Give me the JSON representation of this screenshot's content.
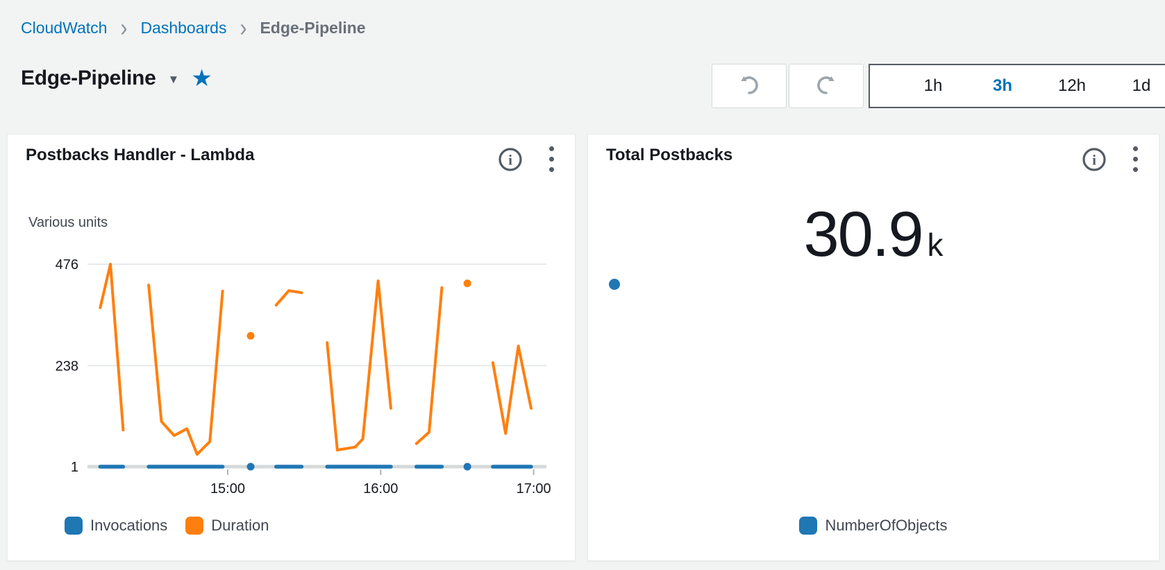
{
  "breadcrumb": {
    "items": [
      {
        "label": "CloudWatch"
      },
      {
        "label": "Dashboards"
      },
      {
        "label": "Edge-Pipeline"
      }
    ]
  },
  "header": {
    "title": "Edge-Pipeline"
  },
  "icons": {
    "breadcrumb_separator": "›",
    "title_caret": "▼",
    "favorite_star": "★"
  },
  "toolbar": {
    "ranges": [
      "1h",
      "3h",
      "12h",
      "1d"
    ],
    "selected_range": "3h"
  },
  "colors": {
    "link_blue": "#0073bb",
    "series_blue": "#1f77b4",
    "series_orange": "#ff7f0e",
    "background": "#f2f3f3",
    "text_dark": "#16191f"
  },
  "chart_data": [
    {
      "type": "line",
      "title": "Postbacks Handler - Lambda",
      "units_label": "Various units",
      "ylim": [
        1,
        476
      ],
      "yticks": [
        476,
        238,
        1
      ],
      "x_start": "14:05",
      "x_end": "17:05",
      "xticks": [
        "15:00",
        "16:00",
        "17:00"
      ],
      "grid": true,
      "legend_position": "bottom",
      "series": [
        {
          "name": "Invocations",
          "color": "#1f77b4",
          "segments": [
            [
              [
                "14:10",
                1
              ],
              [
                "14:19",
                1
              ]
            ],
            [
              [
                "14:29",
                1
              ],
              [
                "14:58",
                1
              ]
            ],
            [
              [
                "15:19",
                1
              ],
              [
                "15:29",
                1
              ]
            ],
            [
              [
                "15:39",
                1
              ],
              [
                "16:04",
                1
              ]
            ],
            [
              [
                "16:14",
                1
              ],
              [
                "16:24",
                1
              ]
            ],
            [
              [
                "16:44",
                1
              ],
              [
                "16:59",
                1
              ]
            ]
          ],
          "dots": [
            [
              "15:09",
              1
            ],
            [
              "16:34",
              1
            ]
          ]
        },
        {
          "name": "Duration",
          "color": "#ff7f0e",
          "segments": [
            [
              [
                "14:10",
                374
              ],
              [
                "14:14",
                476
              ],
              [
                "14:19",
                87
              ]
            ],
            [
              [
                "14:29",
                427
              ],
              [
                "14:34",
                107
              ],
              [
                "14:39",
                74
              ],
              [
                "14:44",
                90
              ],
              [
                "14:48",
                30
              ],
              [
                "14:53",
                60
              ],
              [
                "14:58",
                413
              ]
            ],
            [
              [
                "15:19",
                380
              ],
              [
                "15:24",
                414
              ],
              [
                "15:29",
                409
              ]
            ],
            [
              [
                "15:39",
                292
              ],
              [
                "15:43",
                40
              ],
              [
                "15:50",
                47
              ],
              [
                "15:53",
                66
              ],
              [
                "15:59",
                437
              ],
              [
                "16:04",
                138
              ]
            ],
            [
              [
                "16:14",
                55
              ],
              [
                "16:19",
                82
              ],
              [
                "16:24",
                421
              ]
            ],
            [
              [
                "16:44",
                245
              ],
              [
                "16:49",
                79
              ],
              [
                "16:54",
                284
              ],
              [
                "16:59",
                138
              ]
            ]
          ],
          "dots": [
            [
              "15:09",
              308
            ],
            [
              "16:34",
              431
            ]
          ]
        }
      ]
    },
    {
      "type": "number",
      "title": "Total Postbacks",
      "big_value": "30.9",
      "big_value_suffix": "k",
      "series": [
        {
          "name": "NumberOfObjects",
          "color": "#1f77b4",
          "points": [
            [
              "14:10",
              30900
            ]
          ]
        }
      ]
    }
  ]
}
